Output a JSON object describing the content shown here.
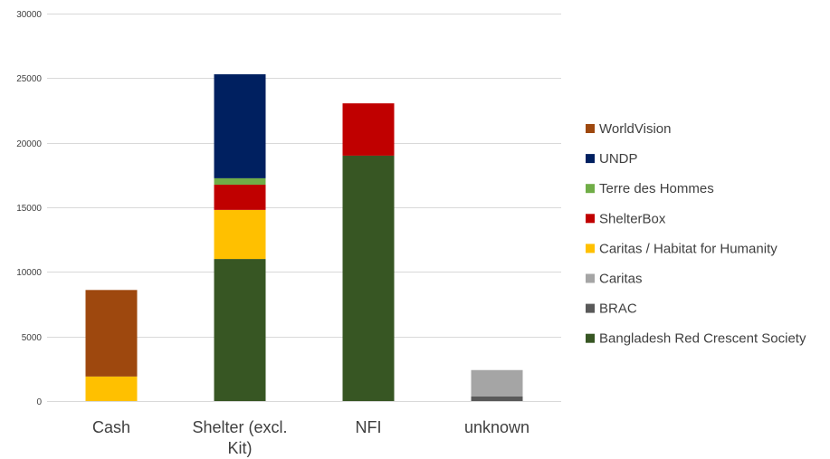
{
  "chart_data": {
    "type": "bar",
    "stacked": true,
    "categories": [
      [
        "Cash"
      ],
      [
        "Shelter (excl.",
        "Kit)"
      ],
      [
        "NFI"
      ],
      [
        "unknown"
      ]
    ],
    "ylim": [
      0,
      30000
    ],
    "yticks": [
      0,
      5000,
      10000,
      15000,
      20000,
      25000,
      30000
    ],
    "grid": true,
    "legend_position": "right",
    "series": [
      {
        "name": "Bangladesh Red Crescent Society",
        "color": "#375623",
        "values": [
          0,
          11000,
          19000,
          0
        ]
      },
      {
        "name": "BRAC",
        "color": "#595959",
        "values": [
          0,
          0,
          0,
          350
        ]
      },
      {
        "name": "Caritas",
        "color": "#a5a5a5",
        "values": [
          0,
          0,
          0,
          2050
        ]
      },
      {
        "name": "Caritas / Habitat for Humanity",
        "color": "#ffc000",
        "values": [
          1900,
          3800,
          0,
          0
        ]
      },
      {
        "name": "ShelterBox",
        "color": "#c00000",
        "values": [
          0,
          1950,
          4050,
          0
        ]
      },
      {
        "name": "Terre des Hommes",
        "color": "#70ad47",
        "values": [
          0,
          500,
          0,
          0
        ]
      },
      {
        "name": "UNDP",
        "color": "#002060",
        "values": [
          0,
          8050,
          0,
          0
        ]
      },
      {
        "name": "WorldVision",
        "color": "#9e480e",
        "values": [
          6700,
          0,
          0,
          0
        ]
      }
    ],
    "title": "",
    "xlabel": "",
    "ylabel": ""
  }
}
